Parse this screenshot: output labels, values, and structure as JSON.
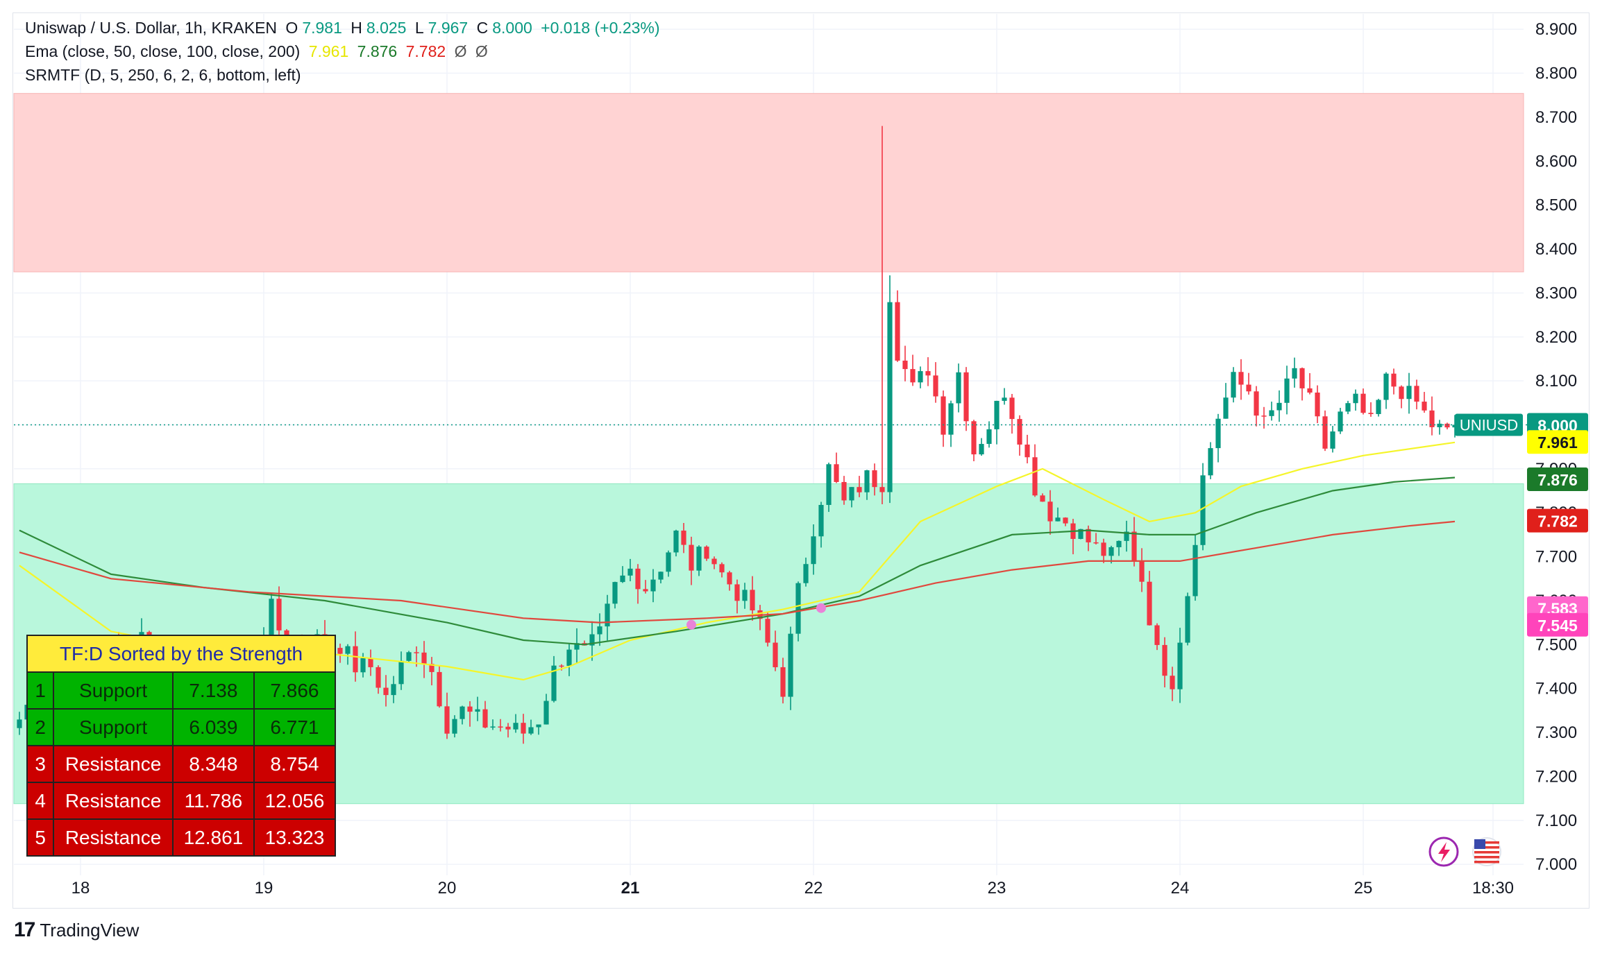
{
  "legend": {
    "symbol": "Uniswap / U.S. Dollar, 1h, KRAKEN",
    "o_label": "O",
    "o_value": "7.981",
    "h_label": "H",
    "h_value": "8.025",
    "l_label": "L",
    "l_value": "7.967",
    "c_label": "C",
    "c_value": "8.000",
    "change": "+0.018 (+0.23%)",
    "ema_label": "Ema (close, 50, close, 100, close, 200)",
    "ema_v1": "7.961",
    "ema_v2": "7.876",
    "ema_v3": "7.782",
    "ema_na1": "Ø",
    "ema_na2": "Ø",
    "srmtf_label": "SRMTF (D, 5, 250, 6, 2, 6, bottom, left)"
  },
  "colors": {
    "up": "#089981",
    "down": "#f23645",
    "ema50": "#f5f52a",
    "ema100": "#2e8b3a",
    "ema200": "#e0483d",
    "resistance_zone": "#ffd3d3",
    "support_zone": "#b9f7dc",
    "marker": "#e983d8"
  },
  "sr_table": {
    "header": "TF:D Sorted by the Strength",
    "rows": [
      {
        "n": "1",
        "type": "Support",
        "low": "7.138",
        "high": "7.866",
        "kind": "sup"
      },
      {
        "n": "2",
        "type": "Support",
        "low": "6.039",
        "high": "6.771",
        "kind": "sup"
      },
      {
        "n": "3",
        "type": "Resistance",
        "low": "8.348",
        "high": "8.754",
        "kind": "res"
      },
      {
        "n": "4",
        "type": "Resistance",
        "low": "11.786",
        "high": "12.056",
        "kind": "res"
      },
      {
        "n": "5",
        "type": "Resistance",
        "low": "12.861",
        "high": "13.323",
        "kind": "res"
      }
    ]
  },
  "price_badges": [
    {
      "label": "UNIUSD",
      "value": "8.000",
      "price": 8.0,
      "color": "#089981",
      "text": "#ffffff"
    },
    {
      "value": "7.961",
      "price": 7.961,
      "color": "#ffff00",
      "text": "#131722"
    },
    {
      "value": "7.876",
      "price": 7.876,
      "color": "#1b7a2a",
      "text": "#ffffff"
    },
    {
      "value": "7.782",
      "price": 7.782,
      "color": "#e0201b",
      "text": "#ffffff"
    },
    {
      "value": "7.583",
      "price": 7.583,
      "color": "#ff66cc",
      "text": "#ffffff"
    },
    {
      "value": "7.545",
      "price": 7.545,
      "color": "#ff44bb",
      "text": "#ffffff"
    }
  ],
  "footer": {
    "brand": "TradingView",
    "mark": "17"
  },
  "chart_data": {
    "type": "candlestick",
    "title": "Uniswap / U.S. Dollar, 1h, KRAKEN",
    "ylim": [
      6.975,
      8.935
    ],
    "y_ticks": [
      "7.000",
      "7.100",
      "7.200",
      "7.300",
      "7.400",
      "7.500",
      "7.600",
      "7.700",
      "7.800",
      "7.900",
      "8.000",
      "8.100",
      "8.200",
      "8.300",
      "8.400",
      "8.500",
      "8.600",
      "8.700",
      "8.800",
      "8.900"
    ],
    "x_ticks": [
      {
        "label": "18",
        "bar": 8,
        "bold": false
      },
      {
        "label": "19",
        "bar": 32,
        "bold": false
      },
      {
        "label": "20",
        "bar": 56,
        "bold": false
      },
      {
        "label": "21",
        "bar": 80,
        "bold": true
      },
      {
        "label": "22",
        "bar": 104,
        "bold": false
      },
      {
        "label": "23",
        "bar": 128,
        "bold": false
      },
      {
        "label": "24",
        "bar": 152,
        "bold": false
      },
      {
        "label": "25",
        "bar": 176,
        "bold": false
      },
      {
        "label": "18:30",
        "bar": 193,
        "bold": false
      }
    ],
    "zones": [
      {
        "name": "resistance",
        "low": 8.348,
        "high": 8.754
      },
      {
        "name": "support",
        "low": 7.138,
        "high": 7.866
      }
    ],
    "last_price": 8.0,
    "markers": [
      {
        "bar": 88,
        "price": 7.545
      },
      {
        "bar": 105,
        "price": 7.583
      }
    ],
    "anchors": [
      [
        0,
        7.33
      ],
      [
        3,
        7.42
      ],
      [
        5,
        7.28
      ],
      [
        7,
        7.36
      ],
      [
        10,
        7.34
      ],
      [
        12,
        7.5
      ],
      [
        14,
        7.43
      ],
      [
        16,
        7.52
      ],
      [
        18,
        7.45
      ],
      [
        20,
        7.5
      ],
      [
        22,
        7.4
      ],
      [
        24,
        7.48
      ],
      [
        26,
        7.41
      ],
      [
        28,
        7.48
      ],
      [
        31,
        7.47
      ],
      [
        33,
        7.58
      ],
      [
        35,
        7.49
      ],
      [
        38,
        7.52
      ],
      [
        40,
        7.5
      ],
      [
        42,
        7.5
      ],
      [
        44,
        7.45
      ],
      [
        46,
        7.45
      ],
      [
        48,
        7.38
      ],
      [
        50,
        7.45
      ],
      [
        52,
        7.5
      ],
      [
        54,
        7.44
      ],
      [
        56,
        7.32
      ],
      [
        58,
        7.35
      ],
      [
        61,
        7.32
      ],
      [
        64,
        7.31
      ],
      [
        66,
        7.3
      ],
      [
        68,
        7.33
      ],
      [
        70,
        7.44
      ],
      [
        72,
        7.5
      ],
      [
        74,
        7.48
      ],
      [
        76,
        7.52
      ],
      [
        78,
        7.63
      ],
      [
        80,
        7.67
      ],
      [
        82,
        7.63
      ],
      [
        84,
        7.68
      ],
      [
        86,
        7.75
      ],
      [
        88,
        7.68
      ],
      [
        90,
        7.72
      ],
      [
        92,
        7.66
      ],
      [
        94,
        7.62
      ],
      [
        96,
        7.58
      ],
      [
        98,
        7.5
      ],
      [
        100,
        7.4
      ],
      [
        102,
        7.62
      ],
      [
        104,
        7.77
      ],
      [
        106,
        7.9
      ],
      [
        108,
        7.82
      ],
      [
        111,
        7.88
      ],
      [
        113,
        7.87
      ],
      [
        114,
        8.3
      ],
      [
        115,
        8.17
      ],
      [
        117,
        8.08
      ],
      [
        119,
        8.13
      ],
      [
        121,
        8.0
      ],
      [
        123,
        8.12
      ],
      [
        125,
        7.94
      ],
      [
        127,
        8.0
      ],
      [
        129,
        8.08
      ],
      [
        131,
        7.98
      ],
      [
        133,
        7.86
      ],
      [
        135,
        7.8
      ],
      [
        137,
        7.78
      ],
      [
        139,
        7.75
      ],
      [
        141,
        7.72
      ],
      [
        143,
        7.7
      ],
      [
        145,
        7.75
      ],
      [
        147,
        7.65
      ],
      [
        149,
        7.48
      ],
      [
        151,
        7.42
      ],
      [
        153,
        7.62
      ],
      [
        155,
        7.88
      ],
      [
        157,
        8.02
      ],
      [
        159,
        8.1
      ],
      [
        161,
        8.08
      ],
      [
        163,
        8.0
      ],
      [
        165,
        8.05
      ],
      [
        167,
        8.12
      ],
      [
        169,
        8.05
      ],
      [
        171,
        7.95
      ],
      [
        173,
        8.02
      ],
      [
        175,
        8.05
      ],
      [
        177,
        8.0
      ],
      [
        179,
        8.1
      ],
      [
        181,
        8.08
      ],
      [
        183,
        8.05
      ],
      [
        185,
        8.0
      ],
      [
        187,
        7.98
      ],
      [
        188,
        8.0
      ]
    ],
    "ema": [
      {
        "name": "EMA 50",
        "value": "7.961",
        "points": [
          [
            0,
            7.68
          ],
          [
            12,
            7.53
          ],
          [
            24,
            7.49
          ],
          [
            40,
            7.48
          ],
          [
            56,
            7.45
          ],
          [
            66,
            7.42
          ],
          [
            72,
            7.45
          ],
          [
            80,
            7.51
          ],
          [
            90,
            7.55
          ],
          [
            100,
            7.58
          ],
          [
            110,
            7.62
          ],
          [
            118,
            7.78
          ],
          [
            128,
            7.86
          ],
          [
            134,
            7.9
          ],
          [
            142,
            7.83
          ],
          [
            148,
            7.78
          ],
          [
            154,
            7.8
          ],
          [
            160,
            7.86
          ],
          [
            168,
            7.9
          ],
          [
            176,
            7.93
          ],
          [
            188,
            7.96
          ]
        ]
      },
      {
        "name": "EMA 100",
        "value": "7.876",
        "points": [
          [
            0,
            7.76
          ],
          [
            12,
            7.66
          ],
          [
            24,
            7.63
          ],
          [
            40,
            7.6
          ],
          [
            56,
            7.55
          ],
          [
            66,
            7.51
          ],
          [
            74,
            7.5
          ],
          [
            86,
            7.53
          ],
          [
            100,
            7.57
          ],
          [
            110,
            7.61
          ],
          [
            118,
            7.68
          ],
          [
            130,
            7.75
          ],
          [
            140,
            7.76
          ],
          [
            148,
            7.75
          ],
          [
            154,
            7.75
          ],
          [
            162,
            7.8
          ],
          [
            172,
            7.85
          ],
          [
            180,
            7.87
          ],
          [
            188,
            7.88
          ]
        ]
      },
      {
        "name": "EMA 200",
        "value": "7.782",
        "points": [
          [
            0,
            7.71
          ],
          [
            12,
            7.65
          ],
          [
            30,
            7.62
          ],
          [
            50,
            7.6
          ],
          [
            66,
            7.56
          ],
          [
            76,
            7.55
          ],
          [
            90,
            7.56
          ],
          [
            100,
            7.57
          ],
          [
            110,
            7.6
          ],
          [
            120,
            7.64
          ],
          [
            130,
            7.67
          ],
          [
            140,
            7.69
          ],
          [
            152,
            7.69
          ],
          [
            162,
            7.72
          ],
          [
            172,
            7.75
          ],
          [
            182,
            7.77
          ],
          [
            188,
            7.78
          ]
        ]
      }
    ]
  }
}
